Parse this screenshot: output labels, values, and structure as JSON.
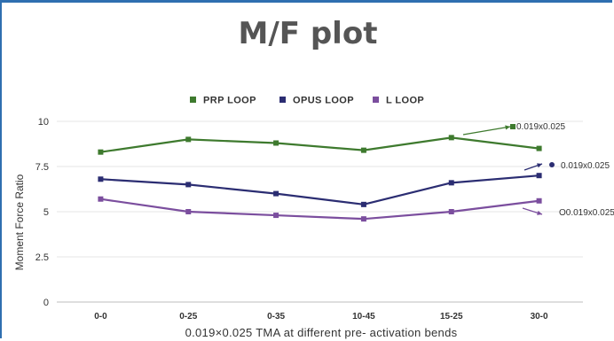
{
  "chart_data": {
    "type": "line",
    "title": "M/F plot",
    "xlabel": "0.019×0.025 TMA at different pre- activation bends",
    "ylabel": "Moment Force Ratio",
    "categories": [
      "0-0",
      "0-25",
      "0-35",
      "10-45",
      "15-25",
      "30-0"
    ],
    "ylim": [
      0,
      10
    ],
    "yticks": [
      {
        "value": 0,
        "label": "0"
      },
      {
        "value": 2.5,
        "label": "2.5"
      },
      {
        "value": 5,
        "label": "5"
      },
      {
        "value": 7.5,
        "label": "7.5"
      },
      {
        "value": 10,
        "label": "10"
      }
    ],
    "grid": true,
    "legend_position": "top",
    "series": [
      {
        "name": "PRP LOOP",
        "color": "#3e7a2e",
        "values": [
          8.3,
          9.0,
          8.8,
          8.4,
          9.1,
          8.5
        ]
      },
      {
        "name": "OPUS LOOP",
        "color": "#2b2d72",
        "values": [
          6.8,
          6.5,
          6.0,
          5.4,
          6.6,
          7.0
        ]
      },
      {
        "name": "L LOOP",
        "color": "#7b4e9e",
        "values": [
          5.7,
          5.0,
          4.8,
          4.6,
          5.0,
          5.6
        ]
      }
    ],
    "annotations": [
      {
        "text": "0.019x0.025",
        "series": 0
      },
      {
        "text": "0.019x0.025",
        "series": 1
      },
      {
        "text": "O0.019x0.025",
        "series": 2
      }
    ]
  }
}
